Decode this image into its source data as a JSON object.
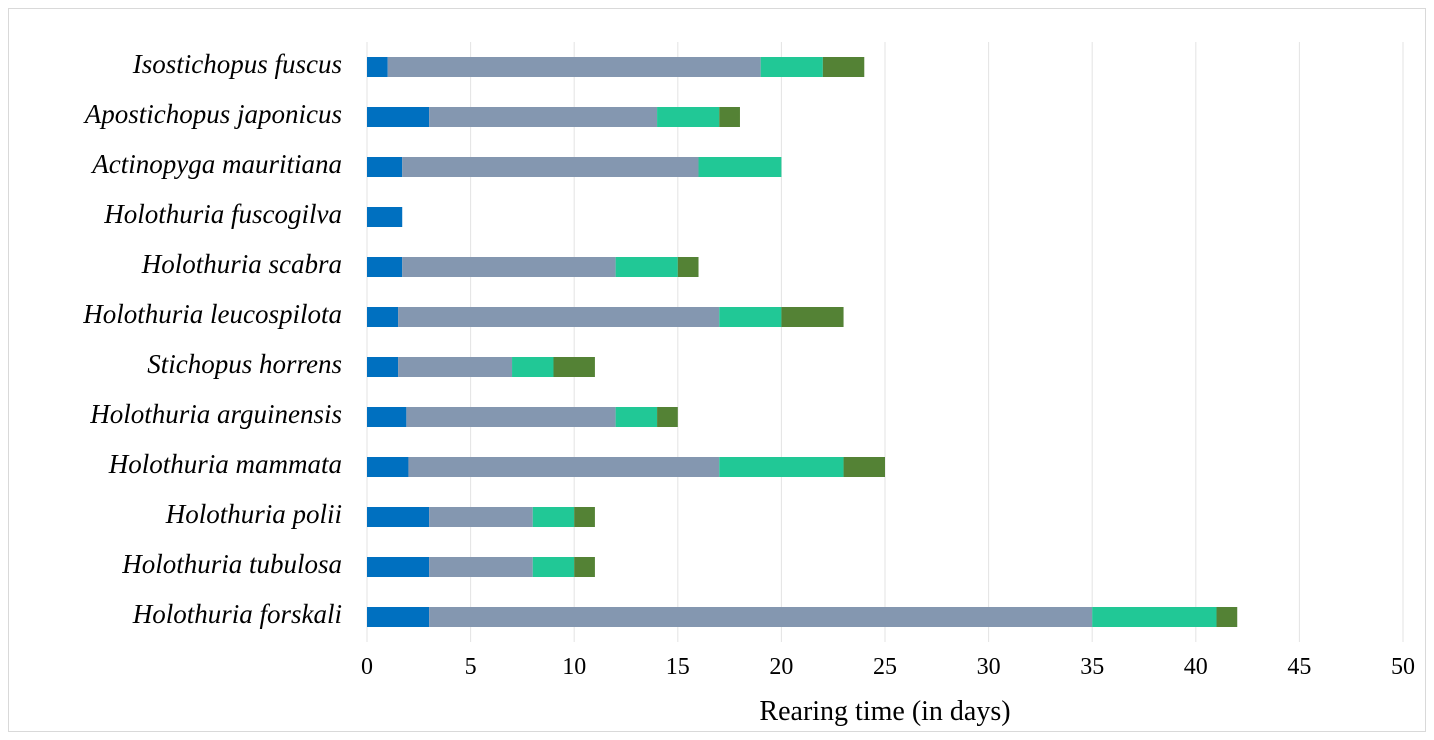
{
  "chart_data": {
    "type": "bar",
    "orientation": "horizontal",
    "stacked": true,
    "title": "",
    "xlabel": "Rearing time (in days)",
    "ylabel": "",
    "xlim": [
      0,
      50
    ],
    "xticks": [
      0,
      5,
      10,
      15,
      20,
      25,
      30,
      35,
      40,
      45,
      50
    ],
    "grid": true,
    "legend": "none",
    "categories": [
      "Isostichopus fuscus",
      "Apostichopus japonicus",
      "Actinopyga mauritiana",
      "Holothuria fuscogilva",
      "Holothuria scabra",
      "Holothuria leucospilota",
      "Stichopus horrens",
      "Holothuria arguinensis",
      "Holothuria mammata",
      "Holothuria polii",
      "Holothuria tubulosa",
      "Holothuria forskali"
    ],
    "series": [
      {
        "color": "#0070c0",
        "values": [
          1,
          3,
          1.7,
          1.7,
          1.7,
          1.5,
          1.5,
          1.9,
          2,
          3,
          3,
          3
        ]
      },
      {
        "color": "#8497b0",
        "values": [
          18,
          11,
          14.3,
          0,
          10.3,
          15.5,
          5.5,
          10.1,
          15,
          5,
          5,
          32
        ]
      },
      {
        "color": "#21c896",
        "values": [
          3,
          3,
          4,
          0,
          3,
          3,
          2,
          2,
          6,
          2,
          2,
          6
        ]
      },
      {
        "color": "#548235",
        "values": [
          2,
          1,
          0,
          0,
          1,
          3,
          2,
          1,
          2,
          1,
          1,
          1
        ]
      }
    ]
  }
}
